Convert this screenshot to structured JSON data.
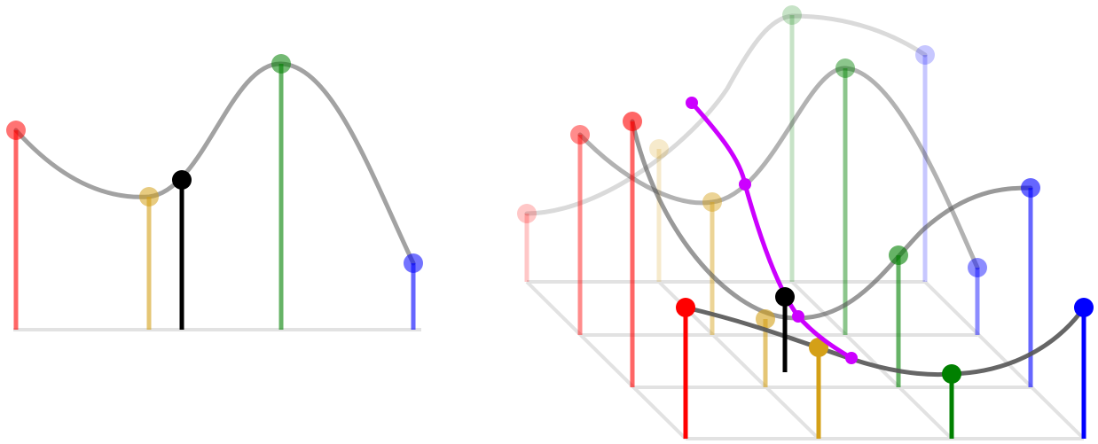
{
  "diagram": {
    "colors": {
      "red": "#ff0000",
      "gold": "#d4a017",
      "green": "#008000",
      "blue": "#0000ff",
      "black": "#000000",
      "curve": "#555555",
      "magenta": "#cc00ff",
      "grid": "#e2e2e2"
    },
    "left_panel": {
      "stems": [
        "red",
        "gold",
        "black",
        "green",
        "blue"
      ]
    },
    "right_panel": {
      "rows": 3,
      "columns": 4,
      "interpolated_row_color": "black",
      "interpolated_column_color": "magenta"
    }
  }
}
